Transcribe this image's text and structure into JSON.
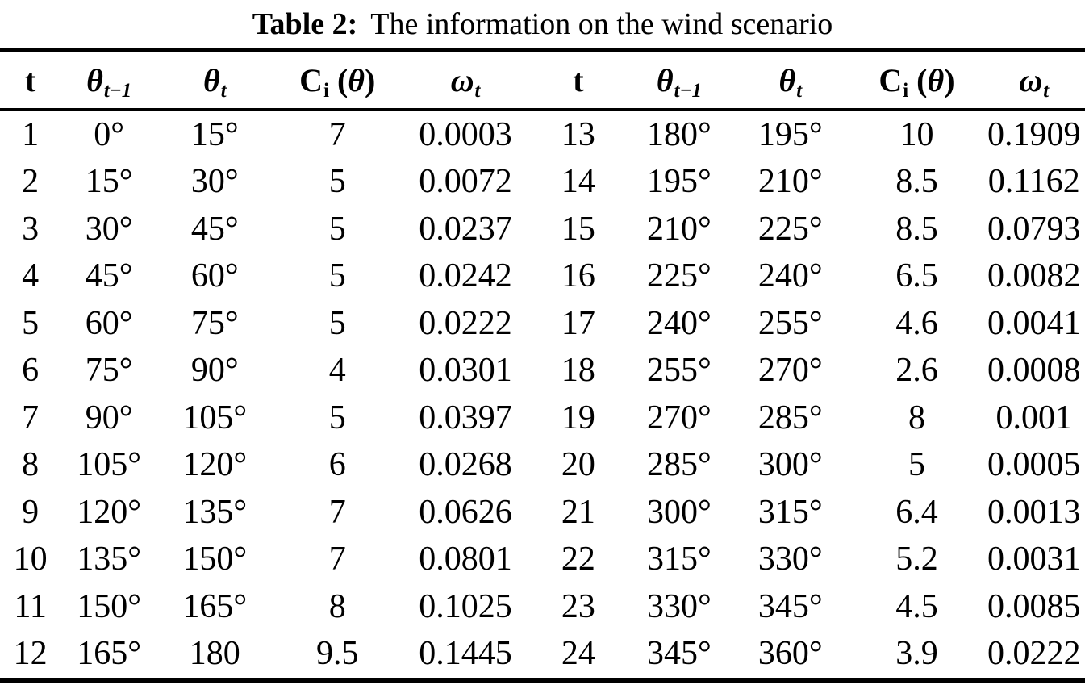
{
  "title": {
    "label": "Table 2:",
    "text": "The information on the wind scenario"
  },
  "table": {
    "headers": [
      [
        {
          "text": "t",
          "style": "b"
        }
      ],
      [
        {
          "text": "θ",
          "style": "bi"
        },
        {
          "text": "t−1",
          "style": "sub"
        }
      ],
      [
        {
          "text": "θ",
          "style": "bi"
        },
        {
          "text": "t",
          "style": "sub"
        }
      ],
      [
        {
          "text": "C",
          "style": "b"
        },
        {
          "text": "i",
          "style": "subr"
        },
        {
          "text": " (",
          "style": "b"
        },
        {
          "text": "θ",
          "style": "bi"
        },
        {
          "text": ")",
          "style": "b"
        }
      ],
      [
        {
          "text": "ω",
          "style": "bi"
        },
        {
          "text": "t",
          "style": "sub"
        }
      ],
      [
        {
          "text": "t",
          "style": "b"
        }
      ],
      [
        {
          "text": "θ",
          "style": "bi"
        },
        {
          "text": "t−1",
          "style": "sub"
        }
      ],
      [
        {
          "text": "θ",
          "style": "bi"
        },
        {
          "text": "t",
          "style": "sub"
        }
      ],
      [
        {
          "text": "C",
          "style": "b"
        },
        {
          "text": "i",
          "style": "subr"
        },
        {
          "text": " (",
          "style": "b"
        },
        {
          "text": "θ",
          "style": "bi"
        },
        {
          "text": ")",
          "style": "b"
        }
      ],
      [
        {
          "text": "ω",
          "style": "bi"
        },
        {
          "text": "t",
          "style": "sub"
        }
      ]
    ],
    "col_widths": [
      "5.6%",
      "8.9%",
      "10.6%",
      "12.0%",
      "11.6%",
      "9.2%",
      "9.4%",
      "11.1%",
      "12.2%",
      "9.4%"
    ],
    "rows": [
      [
        "1",
        "0°",
        "15°",
        "7",
        "0.0003",
        "13",
        "180°",
        "195°",
        "10",
        "0.1909"
      ],
      [
        "2",
        "15°",
        "30°",
        "5",
        "0.0072",
        "14",
        "195°",
        "210°",
        "8.5",
        "0.1162"
      ],
      [
        "3",
        "30°",
        "45°",
        "5",
        "0.0237",
        "15",
        "210°",
        "225°",
        "8.5",
        "0.0793"
      ],
      [
        "4",
        "45°",
        "60°",
        "5",
        "0.0242",
        "16",
        "225°",
        "240°",
        "6.5",
        "0.0082"
      ],
      [
        "5",
        "60°",
        "75°",
        "5",
        "0.0222",
        "17",
        "240°",
        "255°",
        "4.6",
        "0.0041"
      ],
      [
        "6",
        "75°",
        "90°",
        "4",
        "0.0301",
        "18",
        "255°",
        "270°",
        "2.6",
        "0.0008"
      ],
      [
        "7",
        "90°",
        "105°",
        "5",
        "0.0397",
        "19",
        "270°",
        "285°",
        "8",
        "0.001"
      ],
      [
        "8",
        "105°",
        "120°",
        "6",
        "0.0268",
        "20",
        "285°",
        "300°",
        "5",
        "0.0005"
      ],
      [
        "9",
        "120°",
        "135°",
        "7",
        "0.0626",
        "21",
        "300°",
        "315°",
        "6.4",
        "0.0013"
      ],
      [
        "10",
        "135°",
        "150°",
        "7",
        "0.0801",
        "22",
        "315°",
        "330°",
        "5.2",
        "0.0031"
      ],
      [
        "11",
        "150°",
        "165°",
        "8",
        "0.1025",
        "23",
        "330°",
        "345°",
        "4.5",
        "0.0085"
      ],
      [
        "12",
        "165°",
        "180",
        "9.5",
        "0.1445",
        "24",
        "345°",
        "360°",
        "3.9",
        "0.0222"
      ]
    ]
  },
  "chart_data": {
    "type": "table",
    "title": "Table 2: The information on the wind scenario",
    "columns": [
      "t",
      "theta_t-1",
      "theta_t",
      "Ci(theta)",
      "omega_t"
    ],
    "records": [
      {
        "t": 1,
        "theta_prev": "0°",
        "theta_t": "15°",
        "Ci": 7,
        "omega": 0.0003
      },
      {
        "t": 2,
        "theta_prev": "15°",
        "theta_t": "30°",
        "Ci": 5,
        "omega": 0.0072
      },
      {
        "t": 3,
        "theta_prev": "30°",
        "theta_t": "45°",
        "Ci": 5,
        "omega": 0.0237
      },
      {
        "t": 4,
        "theta_prev": "45°",
        "theta_t": "60°",
        "Ci": 5,
        "omega": 0.0242
      },
      {
        "t": 5,
        "theta_prev": "60°",
        "theta_t": "75°",
        "Ci": 5,
        "omega": 0.0222
      },
      {
        "t": 6,
        "theta_prev": "75°",
        "theta_t": "90°",
        "Ci": 4,
        "omega": 0.0301
      },
      {
        "t": 7,
        "theta_prev": "90°",
        "theta_t": "105°",
        "Ci": 5,
        "omega": 0.0397
      },
      {
        "t": 8,
        "theta_prev": "105°",
        "theta_t": "120°",
        "Ci": 6,
        "omega": 0.0268
      },
      {
        "t": 9,
        "theta_prev": "120°",
        "theta_t": "135°",
        "Ci": 7,
        "omega": 0.0626
      },
      {
        "t": 10,
        "theta_prev": "135°",
        "theta_t": "150°",
        "Ci": 7,
        "omega": 0.0801
      },
      {
        "t": 11,
        "theta_prev": "150°",
        "theta_t": "165°",
        "Ci": 8,
        "omega": 0.1025
      },
      {
        "t": 12,
        "theta_prev": "165°",
        "theta_t": "180",
        "Ci": 9.5,
        "omega": 0.1445
      },
      {
        "t": 13,
        "theta_prev": "180°",
        "theta_t": "195°",
        "Ci": 10,
        "omega": 0.1909
      },
      {
        "t": 14,
        "theta_prev": "195°",
        "theta_t": "210°",
        "Ci": 8.5,
        "omega": 0.1162
      },
      {
        "t": 15,
        "theta_prev": "210°",
        "theta_t": "225°",
        "Ci": 8.5,
        "omega": 0.0793
      },
      {
        "t": 16,
        "theta_prev": "225°",
        "theta_t": "240°",
        "Ci": 6.5,
        "omega": 0.0082
      },
      {
        "t": 17,
        "theta_prev": "240°",
        "theta_t": "255°",
        "Ci": 4.6,
        "omega": 0.0041
      },
      {
        "t": 18,
        "theta_prev": "255°",
        "theta_t": "270°",
        "Ci": 2.6,
        "omega": 0.0008
      },
      {
        "t": 19,
        "theta_prev": "270°",
        "theta_t": "285°",
        "Ci": 8,
        "omega": 0.001
      },
      {
        "t": 20,
        "theta_prev": "285°",
        "theta_t": "300°",
        "Ci": 5,
        "omega": 0.0005
      },
      {
        "t": 21,
        "theta_prev": "300°",
        "theta_t": "315°",
        "Ci": 6.4,
        "omega": 0.0013
      },
      {
        "t": 22,
        "theta_prev": "315°",
        "theta_t": "330°",
        "Ci": 5.2,
        "omega": 0.0031
      },
      {
        "t": 23,
        "theta_prev": "330°",
        "theta_t": "345°",
        "Ci": 4.5,
        "omega": 0.0085
      },
      {
        "t": 24,
        "theta_prev": "345°",
        "theta_t": "360°",
        "Ci": 3.9,
        "omega": 0.0222
      }
    ]
  }
}
